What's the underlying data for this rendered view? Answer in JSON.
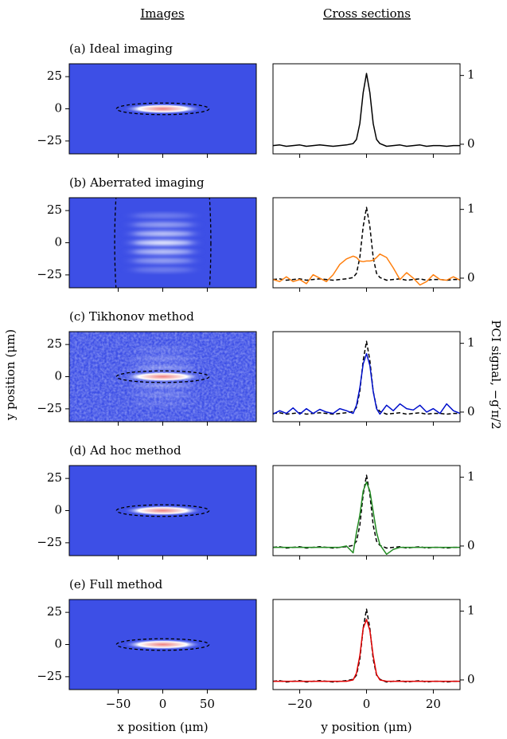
{
  "column_titles": [
    "Images",
    "Cross sections"
  ],
  "ylabel_left": "y position (μm)",
  "ylabel_right": "PCI signal, −g′π/2",
  "chart_data": [
    {
      "type": "image",
      "title": "(a) Ideal imaging",
      "xlim": [
        -105,
        105
      ],
      "ylim": [
        -35,
        35
      ],
      "xticks": [
        {
          "value": -50,
          "label": "−50"
        },
        0,
        50
      ],
      "yticks": [
        {
          "value": -25,
          "label": "−25"
        },
        0,
        25
      ]
    },
    {
      "type": "line",
      "xlim": [
        -28,
        28
      ],
      "ylim": [
        -0.14,
        1.17
      ],
      "xticks": [
        {
          "value": -20,
          "label": "−20"
        },
        0,
        20
      ],
      "yticks": [
        0,
        1
      ],
      "x": [
        -28,
        -26,
        -24,
        -22,
        -20,
        -18,
        -16,
        -14,
        -12,
        -10,
        -8,
        -6,
        -4,
        -3,
        -2,
        -1,
        0,
        1,
        2,
        3,
        4,
        6,
        8,
        10,
        12,
        14,
        16,
        18,
        20,
        22,
        24,
        26,
        28
      ],
      "series": [
        {
          "color": "#000000",
          "values": [
            -0.02,
            -0.01,
            -0.03,
            -0.02,
            -0.01,
            -0.03,
            -0.02,
            -0.01,
            -0.02,
            -0.03,
            -0.02,
            -0.01,
            0.01,
            0.07,
            0.3,
            0.75,
            1.03,
            0.75,
            0.3,
            0.07,
            0.01,
            -0.03,
            -0.02,
            -0.01,
            -0.03,
            -0.02,
            -0.01,
            -0.03,
            -0.02,
            -0.02,
            -0.03,
            -0.02,
            -0.02
          ]
        }
      ]
    },
    {
      "type": "image",
      "title": "(b) Aberrated imaging",
      "xlim": [
        -105,
        105
      ],
      "ylim": [
        -35,
        35
      ],
      "xticks": [
        {
          "value": -50,
          "label": "−50"
        },
        0,
        50
      ],
      "yticks": [
        {
          "value": -25,
          "label": "−25"
        },
        0,
        25
      ]
    },
    {
      "type": "line",
      "xlim": [
        -28,
        28
      ],
      "ylim": [
        -0.14,
        1.17
      ],
      "xticks": [
        {
          "value": -20,
          "label": "−20"
        },
        0,
        20
      ],
      "yticks": [
        0,
        1
      ],
      "x": [
        -28,
        -26,
        -24,
        -22,
        -20,
        -18,
        -16,
        -14,
        -12,
        -10,
        -8,
        -6,
        -4,
        -3,
        -2,
        -1,
        0,
        1,
        2,
        3,
        4,
        6,
        8,
        10,
        12,
        14,
        16,
        18,
        20,
        22,
        24,
        26,
        28
      ],
      "series": [
        {
          "color": "#ff7f0e",
          "values": [
            -0.02,
            -0.05,
            0.02,
            -0.05,
            -0.02,
            -0.08,
            0.05,
            0.0,
            -0.05,
            0.05,
            0.2,
            0.28,
            0.32,
            0.3,
            0.25,
            0.24,
            0.25,
            0.25,
            0.26,
            0.3,
            0.35,
            0.3,
            0.15,
            -0.02,
            0.08,
            0.0,
            -0.1,
            -0.05,
            0.05,
            -0.02,
            -0.03,
            0.02,
            -0.03
          ]
        },
        {
          "color": "#000000",
          "dash": true,
          "values": [
            -0.02,
            -0.01,
            -0.03,
            -0.02,
            -0.01,
            -0.03,
            -0.02,
            -0.01,
            -0.02,
            -0.03,
            -0.02,
            -0.01,
            0.01,
            0.07,
            0.3,
            0.75,
            1.03,
            0.75,
            0.3,
            0.07,
            0.01,
            -0.03,
            -0.02,
            -0.01,
            -0.03,
            -0.02,
            -0.01,
            -0.03,
            -0.02,
            -0.02,
            -0.03,
            -0.02,
            -0.02
          ]
        }
      ]
    },
    {
      "type": "image",
      "title": "(c) Tikhonov method",
      "xlim": [
        -105,
        105
      ],
      "ylim": [
        -35,
        35
      ],
      "xticks": [
        {
          "value": -50,
          "label": "−50"
        },
        0,
        50
      ],
      "yticks": [
        {
          "value": -25,
          "label": "−25"
        },
        0,
        25
      ]
    },
    {
      "type": "line",
      "xlim": [
        -28,
        28
      ],
      "ylim": [
        -0.14,
        1.17
      ],
      "xticks": [
        {
          "value": -20,
          "label": "−20"
        },
        0,
        20
      ],
      "yticks": [
        0,
        1
      ],
      "x": [
        -28,
        -26,
        -24,
        -22,
        -20,
        -18,
        -16,
        -14,
        -12,
        -10,
        -8,
        -6,
        -4,
        -3,
        -2,
        -1,
        0,
        1,
        2,
        3,
        4,
        6,
        8,
        10,
        12,
        14,
        16,
        18,
        20,
        22,
        24,
        26,
        28
      ],
      "series": [
        {
          "color": "#0010cc",
          "values": [
            -0.03,
            0.02,
            -0.02,
            0.06,
            -0.03,
            0.05,
            -0.02,
            0.04,
            0.0,
            -0.02,
            0.05,
            0.02,
            -0.02,
            0.1,
            0.35,
            0.7,
            0.85,
            0.68,
            0.3,
            0.05,
            -0.03,
            0.1,
            0.02,
            0.12,
            0.05,
            0.03,
            0.1,
            0.0,
            0.05,
            -0.02,
            0.12,
            0.02,
            -0.02
          ]
        },
        {
          "color": "#000000",
          "dash": true,
          "values": [
            -0.02,
            -0.01,
            -0.03,
            -0.02,
            -0.01,
            -0.03,
            -0.02,
            -0.01,
            -0.02,
            -0.03,
            -0.02,
            -0.01,
            0.01,
            0.07,
            0.3,
            0.75,
            1.03,
            0.75,
            0.3,
            0.07,
            0.01,
            -0.03,
            -0.02,
            -0.01,
            -0.03,
            -0.02,
            -0.01,
            -0.03,
            -0.02,
            -0.02,
            -0.03,
            -0.02,
            -0.02
          ]
        }
      ]
    },
    {
      "type": "image",
      "title": "(d) Ad hoc method",
      "xlim": [
        -105,
        105
      ],
      "ylim": [
        -35,
        35
      ],
      "xticks": [
        {
          "value": -50,
          "label": "−50"
        },
        0,
        50
      ],
      "yticks": [
        {
          "value": -25,
          "label": "−25"
        },
        0,
        25
      ]
    },
    {
      "type": "line",
      "xlim": [
        -28,
        28
      ],
      "ylim": [
        -0.14,
        1.17
      ],
      "xticks": [
        {
          "value": -20,
          "label": "−20"
        },
        0,
        20
      ],
      "yticks": [
        0,
        1
      ],
      "x": [
        -28,
        -26,
        -24,
        -22,
        -20,
        -18,
        -16,
        -14,
        -12,
        -10,
        -8,
        -6,
        -4,
        -3,
        -2,
        -1,
        0,
        1,
        2,
        3,
        4,
        6,
        8,
        10,
        12,
        14,
        16,
        18,
        20,
        22,
        24,
        26,
        28
      ],
      "series": [
        {
          "color": "#228b22",
          "values": [
            -0.02,
            -0.02,
            -0.02,
            -0.02,
            -0.02,
            -0.02,
            -0.02,
            -0.02,
            -0.02,
            -0.02,
            -0.02,
            0.0,
            -0.1,
            0.2,
            0.45,
            0.8,
            0.93,
            0.8,
            0.5,
            0.2,
            0.02,
            -0.12,
            -0.05,
            -0.02,
            -0.02,
            -0.02,
            -0.02,
            -0.02,
            -0.02,
            -0.02,
            -0.02,
            -0.02,
            -0.02
          ]
        },
        {
          "color": "#000000",
          "dash": true,
          "values": [
            -0.02,
            -0.01,
            -0.03,
            -0.02,
            -0.01,
            -0.03,
            -0.02,
            -0.01,
            -0.02,
            -0.03,
            -0.02,
            -0.01,
            0.01,
            0.07,
            0.3,
            0.75,
            1.03,
            0.75,
            0.3,
            0.07,
            0.01,
            -0.03,
            -0.02,
            -0.01,
            -0.03,
            -0.02,
            -0.01,
            -0.03,
            -0.02,
            -0.02,
            -0.03,
            -0.02,
            -0.02
          ]
        }
      ]
    },
    {
      "type": "image",
      "title": "(e) Full method",
      "xlim": [
        -105,
        105
      ],
      "ylim": [
        -35,
        35
      ],
      "xticks": [
        {
          "value": -50,
          "label": "−50"
        },
        0,
        50
      ],
      "yticks": [
        {
          "value": -25,
          "label": "−25"
        },
        0,
        25
      ],
      "xlabel": "x position (μm)"
    },
    {
      "type": "line",
      "xlim": [
        -28,
        28
      ],
      "ylim": [
        -0.14,
        1.17
      ],
      "xticks": [
        {
          "value": -20,
          "label": "−20"
        },
        0,
        20
      ],
      "yticks": [
        0,
        1
      ],
      "xlabel": "y position (μm)",
      "x": [
        -28,
        -26,
        -24,
        -22,
        -20,
        -18,
        -16,
        -14,
        -12,
        -10,
        -8,
        -6,
        -4,
        -3,
        -2,
        -1,
        0,
        1,
        2,
        3,
        4,
        6,
        8,
        10,
        12,
        14,
        16,
        18,
        20,
        22,
        24,
        26,
        28
      ],
      "series": [
        {
          "color": "#e00000",
          "values": [
            -0.02,
            -0.02,
            -0.02,
            -0.02,
            -0.02,
            -0.02,
            -0.02,
            -0.02,
            -0.02,
            -0.02,
            -0.02,
            -0.02,
            0.0,
            0.1,
            0.35,
            0.75,
            0.88,
            0.72,
            0.35,
            0.08,
            0.0,
            -0.02,
            -0.02,
            -0.02,
            -0.02,
            -0.02,
            -0.02,
            -0.02,
            -0.02,
            -0.02,
            -0.02,
            -0.02,
            -0.02
          ]
        },
        {
          "color": "#000000",
          "dash": true,
          "values": [
            -0.02,
            -0.01,
            -0.03,
            -0.02,
            -0.01,
            -0.03,
            -0.02,
            -0.01,
            -0.02,
            -0.03,
            -0.02,
            -0.01,
            0.01,
            0.07,
            0.3,
            0.75,
            1.03,
            0.75,
            0.3,
            0.07,
            0.01,
            -0.03,
            -0.02,
            -0.01,
            -0.03,
            -0.02,
            -0.01,
            -0.03,
            -0.02,
            -0.02,
            -0.03,
            -0.02,
            -0.02
          ]
        }
      ]
    }
  ]
}
